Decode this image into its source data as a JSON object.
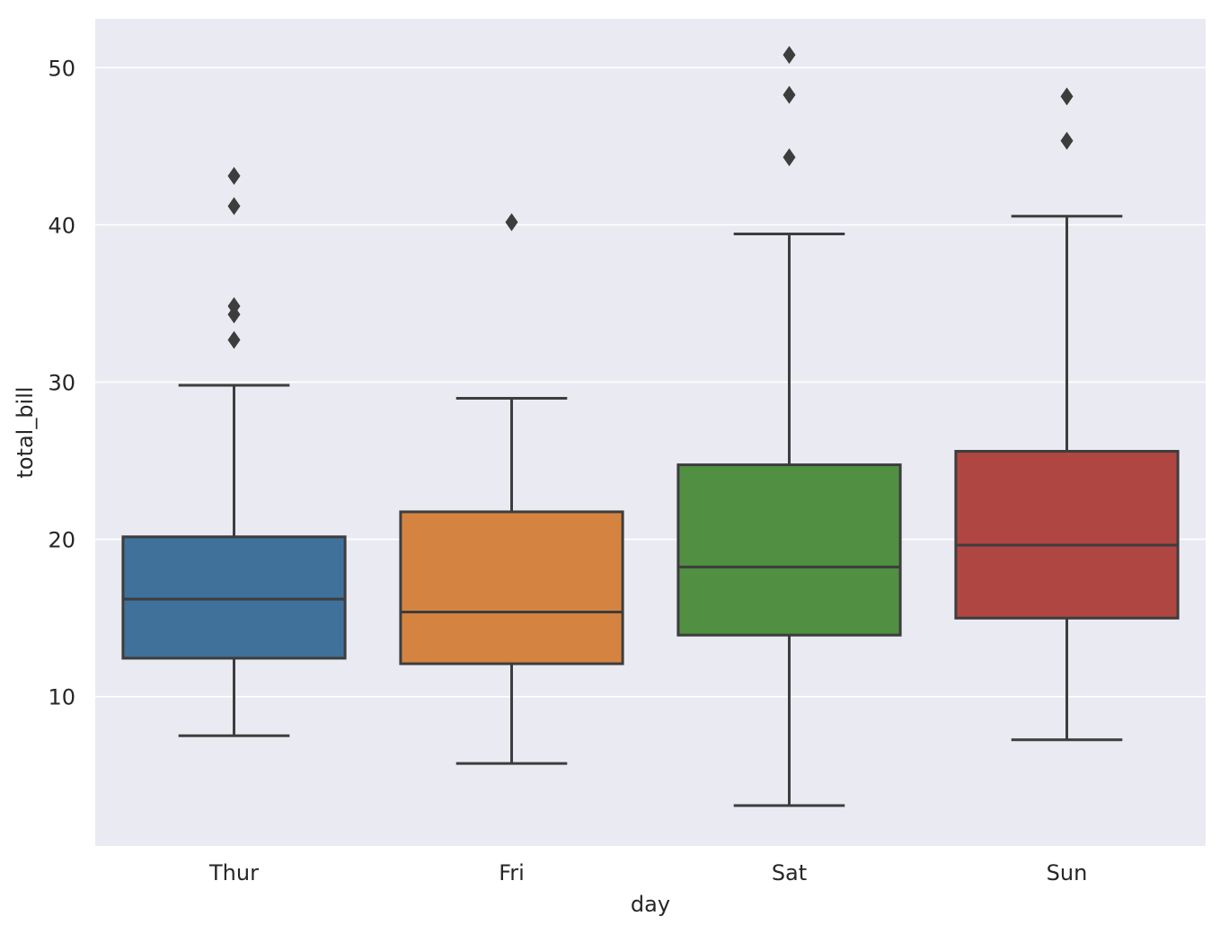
{
  "chart_data": {
    "type": "box",
    "title": "",
    "xlabel": "day",
    "ylabel": "total_bill",
    "categories": [
      "Thur",
      "Fri",
      "Sat",
      "Sun"
    ],
    "ylim": [
      0.5,
      53.1
    ],
    "yticks": [
      10,
      20,
      30,
      40,
      50
    ],
    "grid": true,
    "background": "#eaeaf2",
    "line_color": "#3d3d3d",
    "boxes": [
      {
        "category": "Thur",
        "color": "#3f719b",
        "whisker_low": 7.51,
        "q1": 12.44,
        "median": 16.2,
        "q3": 20.16,
        "whisker_high": 29.8,
        "outliers": [
          32.68,
          34.3,
          34.83,
          41.19,
          43.11
        ]
      },
      {
        "category": "Fri",
        "color": "#d48440",
        "whisker_low": 5.75,
        "q1": 12.09,
        "median": 15.38,
        "q3": 21.75,
        "whisker_high": 28.97,
        "outliers": [
          40.17
        ]
      },
      {
        "category": "Sat",
        "color": "#518f43",
        "whisker_low": 3.07,
        "q1": 13.91,
        "median": 18.24,
        "q3": 24.74,
        "whisker_high": 39.42,
        "outliers": [
          44.3,
          48.27,
          50.81
        ]
      },
      {
        "category": "Sun",
        "color": "#af4642",
        "whisker_low": 7.25,
        "q1": 14.99,
        "median": 19.63,
        "q3": 25.6,
        "whisker_high": 40.55,
        "outliers": [
          45.35,
          48.17
        ]
      }
    ]
  }
}
